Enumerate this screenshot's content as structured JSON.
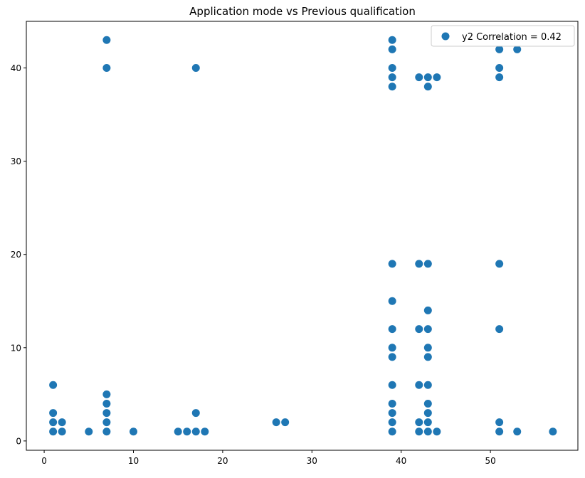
{
  "chart_data": {
    "type": "scatter",
    "title": "Application mode vs Previous qualification",
    "xlabel": "",
    "ylabel": "",
    "xlim": [
      -2,
      59.8
    ],
    "ylim": [
      -1,
      45
    ],
    "xticks": [
      0,
      10,
      20,
      30,
      40,
      50
    ],
    "yticks": [
      0,
      10,
      20,
      30,
      40
    ],
    "grid": false,
    "legend_position": "top-right",
    "marker_color": "#1f77b4",
    "series": [
      {
        "name": "y2 Correlation = 0.42",
        "points": [
          [
            1,
            1
          ],
          [
            1,
            2
          ],
          [
            1,
            3
          ],
          [
            1,
            6
          ],
          [
            2,
            1
          ],
          [
            2,
            2
          ],
          [
            5,
            1
          ],
          [
            7,
            1
          ],
          [
            7,
            2
          ],
          [
            7,
            3
          ],
          [
            7,
            4
          ],
          [
            7,
            5
          ],
          [
            7,
            40
          ],
          [
            7,
            43
          ],
          [
            10,
            1
          ],
          [
            15,
            1
          ],
          [
            16,
            1
          ],
          [
            17,
            1
          ],
          [
            17,
            3
          ],
          [
            17,
            40
          ],
          [
            18,
            1
          ],
          [
            26,
            2
          ],
          [
            27,
            2
          ],
          [
            39,
            1
          ],
          [
            39,
            2
          ],
          [
            39,
            3
          ],
          [
            39,
            4
          ],
          [
            39,
            6
          ],
          [
            39,
            9
          ],
          [
            39,
            10
          ],
          [
            39,
            12
          ],
          [
            39,
            15
          ],
          [
            39,
            19
          ],
          [
            39,
            38
          ],
          [
            39,
            39
          ],
          [
            39,
            40
          ],
          [
            39,
            42
          ],
          [
            39,
            43
          ],
          [
            42,
            1
          ],
          [
            42,
            2
          ],
          [
            42,
            6
          ],
          [
            42,
            12
          ],
          [
            42,
            19
          ],
          [
            42,
            39
          ],
          [
            43,
            1
          ],
          [
            43,
            2
          ],
          [
            43,
            3
          ],
          [
            43,
            4
          ],
          [
            43,
            6
          ],
          [
            43,
            9
          ],
          [
            43,
            10
          ],
          [
            43,
            12
          ],
          [
            43,
            14
          ],
          [
            43,
            19
          ],
          [
            43,
            38
          ],
          [
            43,
            39
          ],
          [
            44,
            1
          ],
          [
            44,
            39
          ],
          [
            51,
            1
          ],
          [
            51,
            2
          ],
          [
            51,
            12
          ],
          [
            51,
            19
          ],
          [
            51,
            39
          ],
          [
            51,
            40
          ],
          [
            51,
            42
          ],
          [
            53,
            1
          ],
          [
            53,
            42
          ],
          [
            57,
            1
          ]
        ]
      }
    ]
  }
}
